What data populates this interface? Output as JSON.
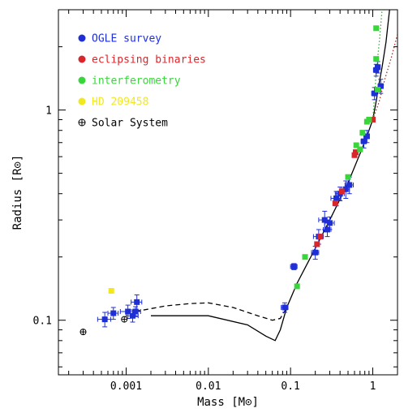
{
  "chart_data": {
    "type": "scatter",
    "title": "",
    "xlabel": "Mass [M⊙]",
    "ylabel": "Radius [R⊙]",
    "x_scale": "log",
    "y_scale": "log",
    "xlim": [
      0.00015,
      2.0
    ],
    "ylim": [
      0.055,
      3.0
    ],
    "x_ticks": [
      {
        "value": 0.001,
        "label": "0.001"
      },
      {
        "value": 0.01,
        "label": "0.01"
      },
      {
        "value": 0.1,
        "label": "0.1"
      },
      {
        "value": 1,
        "label": "1"
      }
    ],
    "y_ticks": [
      {
        "value": 0.1,
        "label": "0.1"
      },
      {
        "value": 1,
        "label": "1"
      }
    ],
    "legend_position": "top-left",
    "legend": [
      {
        "label": "OGLE survey",
        "color": "#1f2fd6",
        "marker": "circle"
      },
      {
        "label": "eclipsing binaries",
        "color": "#d9262b",
        "marker": "circle"
      },
      {
        "label": "interferometry",
        "color": "#39d63b",
        "marker": "circle"
      },
      {
        "label": "HD 209458",
        "color": "#f2e81e",
        "marker": "circle"
      },
      {
        "label": "Solar System",
        "color": "#000000",
        "marker": "crossed-circle"
      }
    ],
    "series": [
      {
        "name": "OGLE survey",
        "color": "#1f2fd6",
        "points": [
          {
            "x": 0.00055,
            "y": 0.101,
            "xerr": 0.0001,
            "yerr": 0.008
          },
          {
            "x": 0.0007,
            "y": 0.108,
            "xerr": 0.0001,
            "yerr": 0.007
          },
          {
            "x": 0.00105,
            "y": 0.11,
            "xerr": 0.0002,
            "yerr": 0.008
          },
          {
            "x": 0.0012,
            "y": 0.105,
            "xerr": 0.0002,
            "yerr": 0.007
          },
          {
            "x": 0.00135,
            "y": 0.122,
            "xerr": 0.0002,
            "yerr": 0.01
          },
          {
            "x": 0.0013,
            "y": 0.11,
            "xerr": 0.0002,
            "yerr": 0.006
          },
          {
            "x": 0.085,
            "y": 0.115,
            "xerr": 0.008,
            "yerr": 0.006
          },
          {
            "x": 0.11,
            "y": 0.18,
            "xerr": 0.01,
            "yerr": 0.006
          },
          {
            "x": 0.2,
            "y": 0.21,
            "xerr": 0.02,
            "yerr": 0.015
          },
          {
            "x": 0.22,
            "y": 0.25,
            "xerr": 0.03,
            "yerr": 0.02
          },
          {
            "x": 0.26,
            "y": 0.3,
            "xerr": 0.04,
            "yerr": 0.03
          },
          {
            "x": 0.28,
            "y": 0.27,
            "xerr": 0.03,
            "yerr": 0.02
          },
          {
            "x": 0.3,
            "y": 0.29,
            "xerr": 0.04,
            "yerr": 0.02
          },
          {
            "x": 0.36,
            "y": 0.38,
            "xerr": 0.05,
            "yerr": 0.03
          },
          {
            "x": 0.4,
            "y": 0.4,
            "xerr": 0.05,
            "yerr": 0.03
          },
          {
            "x": 0.47,
            "y": 0.42,
            "xerr": 0.05,
            "yerr": 0.04
          },
          {
            "x": 0.52,
            "y": 0.44,
            "xerr": 0.06,
            "yerr": 0.04
          },
          {
            "x": 0.78,
            "y": 0.71,
            "xerr": 0.06,
            "yerr": 0.05
          },
          {
            "x": 0.85,
            "y": 0.75,
            "xerr": 0.06,
            "yerr": 0.05
          },
          {
            "x": 1.05,
            "y": 1.2,
            "xerr": 0.08,
            "yerr": 0.08
          },
          {
            "x": 1.1,
            "y": 1.55,
            "xerr": 0.08,
            "yerr": 0.1
          },
          {
            "x": 1.15,
            "y": 1.6,
            "xerr": 0.08,
            "yerr": 0.1
          },
          {
            "x": 1.25,
            "y": 1.3,
            "xerr": 0.09,
            "yerr": 0.1
          }
        ]
      },
      {
        "name": "eclipsing binaries",
        "color": "#d9262b",
        "points": [
          {
            "x": 0.21,
            "y": 0.23
          },
          {
            "x": 0.23,
            "y": 0.25
          },
          {
            "x": 0.35,
            "y": 0.36
          },
          {
            "x": 0.42,
            "y": 0.41
          },
          {
            "x": 0.6,
            "y": 0.61
          },
          {
            "x": 0.62,
            "y": 0.63
          },
          {
            "x": 1.0,
            "y": 0.9
          }
        ]
      },
      {
        "name": "interferometry",
        "color": "#39d63b",
        "points": [
          {
            "x": 0.12,
            "y": 0.145
          },
          {
            "x": 0.15,
            "y": 0.2
          },
          {
            "x": 0.5,
            "y": 0.48
          },
          {
            "x": 0.63,
            "y": 0.68
          },
          {
            "x": 0.7,
            "y": 0.65
          },
          {
            "x": 0.75,
            "y": 0.78
          },
          {
            "x": 0.85,
            "y": 0.88
          },
          {
            "x": 0.9,
            "y": 0.9
          },
          {
            "x": 1.1,
            "y": 1.75
          },
          {
            "x": 1.15,
            "y": 1.25
          },
          {
            "x": 1.1,
            "y": 2.45
          }
        ]
      },
      {
        "name": "HD 209458",
        "color": "#f2e81e",
        "points": [
          {
            "x": 0.00066,
            "y": 0.138
          }
        ]
      },
      {
        "name": "Solar System",
        "color": "#000000",
        "points": [
          {
            "x": 0.0003,
            "y": 0.088
          },
          {
            "x": 0.00095,
            "y": 0.101
          }
        ]
      }
    ],
    "curves": [
      {
        "style": "solid",
        "color": "#000000",
        "points": [
          [
            0.002,
            0.105
          ],
          [
            0.01,
            0.105
          ],
          [
            0.03,
            0.095
          ],
          [
            0.05,
            0.084
          ],
          [
            0.065,
            0.08
          ],
          [
            0.075,
            0.09
          ],
          [
            0.09,
            0.115
          ],
          [
            0.12,
            0.15
          ],
          [
            0.2,
            0.22
          ],
          [
            0.3,
            0.3
          ],
          [
            0.5,
            0.45
          ],
          [
            0.7,
            0.62
          ],
          [
            0.85,
            0.75
          ],
          [
            1.0,
            0.9
          ],
          [
            1.1,
            1.1
          ],
          [
            1.2,
            1.35
          ],
          [
            1.3,
            1.6
          ],
          [
            1.45,
            2.1
          ],
          [
            1.6,
            3.0
          ]
        ]
      },
      {
        "style": "dashed",
        "color": "#000000",
        "points": [
          [
            0.0013,
            0.11
          ],
          [
            0.003,
            0.117
          ],
          [
            0.006,
            0.12
          ],
          [
            0.01,
            0.121
          ],
          [
            0.02,
            0.115
          ],
          [
            0.04,
            0.105
          ],
          [
            0.06,
            0.1
          ],
          [
            0.075,
            0.102
          ],
          [
            0.09,
            0.115
          ]
        ]
      },
      {
        "style": "dotted",
        "color": "#a03030",
        "points": [
          [
            1.0,
            0.9
          ],
          [
            1.2,
            1.1
          ],
          [
            1.4,
            1.4
          ],
          [
            1.7,
            1.8
          ],
          [
            2.0,
            2.3
          ]
        ]
      },
      {
        "style": "dotted",
        "color": "#39b03b",
        "points": [
          [
            1.0,
            0.9
          ],
          [
            1.1,
            1.5
          ],
          [
            1.2,
            2.1
          ],
          [
            1.3,
            3.0
          ]
        ]
      }
    ]
  }
}
